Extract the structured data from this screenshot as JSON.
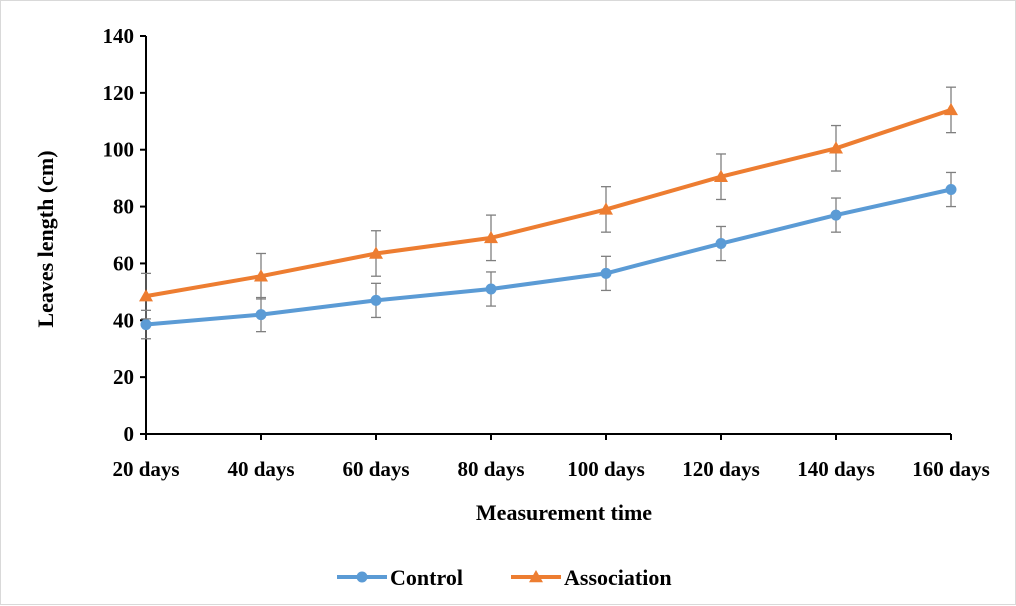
{
  "chart_data": {
    "type": "line",
    "categories": [
      "20 days",
      "40 days",
      "60 days",
      "80 days",
      "100 days",
      "120 days",
      "140 days",
      "160 days"
    ],
    "series": [
      {
        "name": "Control",
        "color": "#5b9bd5",
        "marker": "circle",
        "values": [
          38.5,
          42,
          47,
          51,
          56.5,
          67,
          77,
          86
        ],
        "error": [
          5,
          6,
          6,
          6,
          6,
          6,
          6,
          6
        ]
      },
      {
        "name": "Association",
        "color": "#ed7d31",
        "marker": "triangle",
        "values": [
          48.5,
          55.5,
          63.5,
          69,
          79,
          90.5,
          100.5,
          114
        ],
        "error": [
          8,
          8,
          8,
          8,
          8,
          8,
          8,
          8
        ]
      }
    ],
    "xlabel": "Measurement time",
    "ylabel": "Leaves length (cm)",
    "ylim": [
      0,
      140
    ],
    "yticks": [
      0,
      20,
      40,
      60,
      80,
      100,
      120,
      140
    ],
    "grid": false,
    "legend_position": "bottom"
  }
}
